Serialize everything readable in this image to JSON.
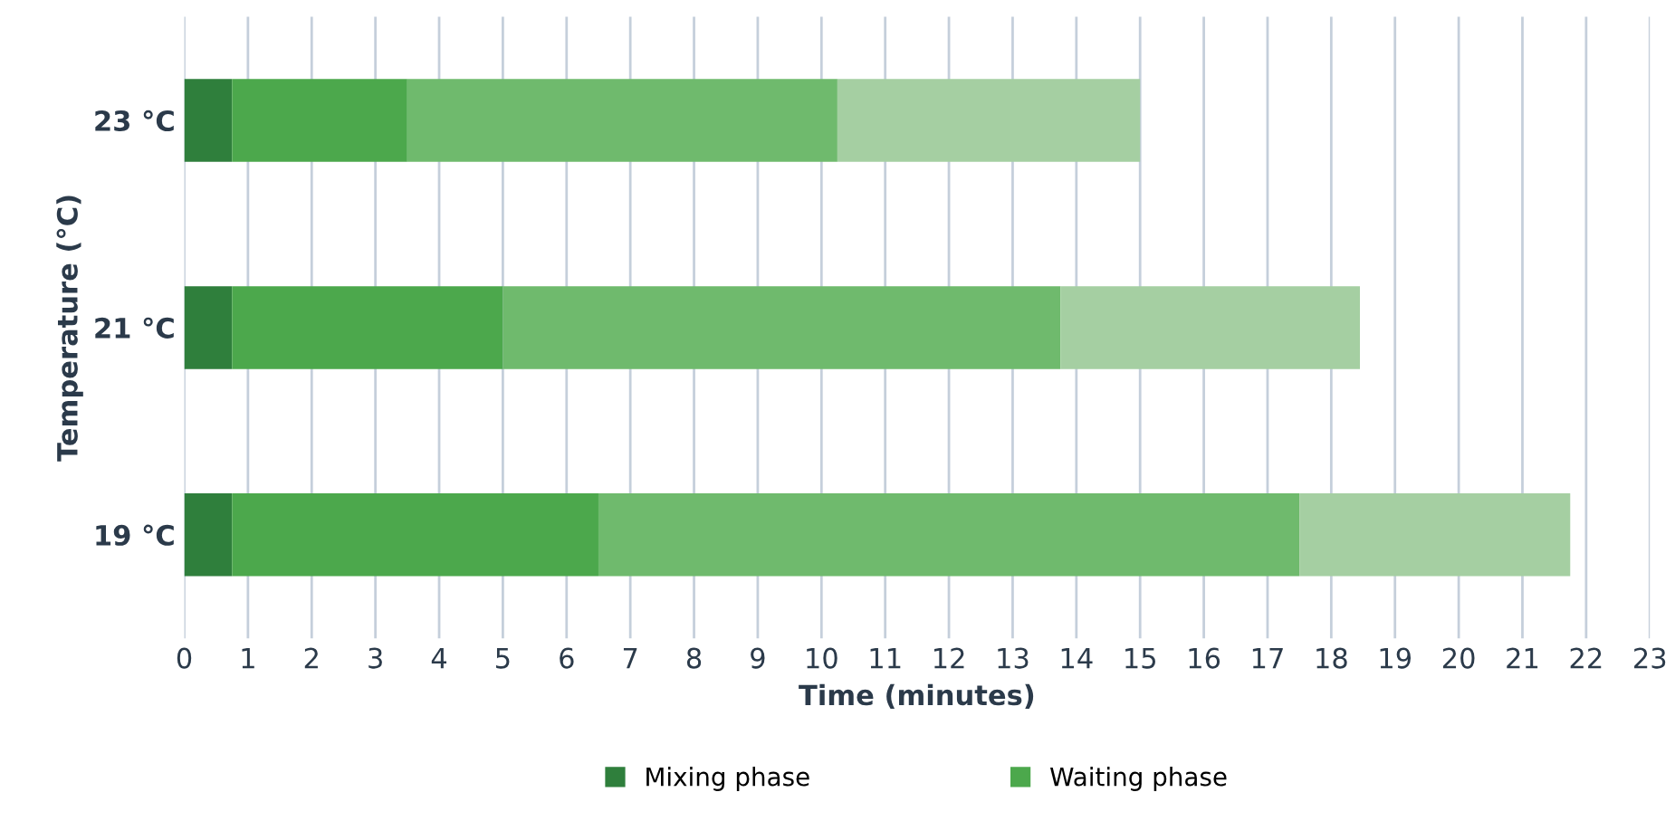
{
  "chart_data": {
    "type": "bar",
    "orientation": "horizontal",
    "stacked": true,
    "xlabel": "Time (minutes)",
    "ylabel": "Temperature (°C)",
    "categories": [
      "23 °C",
      "21 °C",
      "19 °C"
    ],
    "series": [
      {
        "name": "Mixing phase",
        "color": "#2f7f3c",
        "values": [
          0.75,
          0.75,
          0.75
        ]
      },
      {
        "name": "Waiting phase",
        "color": "#4ca84c",
        "values": [
          2.75,
          4.25,
          5.75
        ]
      },
      {
        "color": "#6fba6d",
        "values": [
          6.75,
          8.75,
          11.0
        ]
      },
      {
        "color": "#a5cfa2",
        "values": [
          4.75,
          4.7,
          4.25
        ]
      }
    ],
    "xlim": [
      0,
      23
    ],
    "xticks": [
      0,
      1,
      2,
      3,
      4,
      5,
      6,
      7,
      8,
      9,
      10,
      11,
      12,
      13,
      14,
      15,
      16,
      17,
      18,
      19,
      20,
      21,
      22,
      23
    ],
    "grid": "x",
    "legend": "bottom"
  }
}
